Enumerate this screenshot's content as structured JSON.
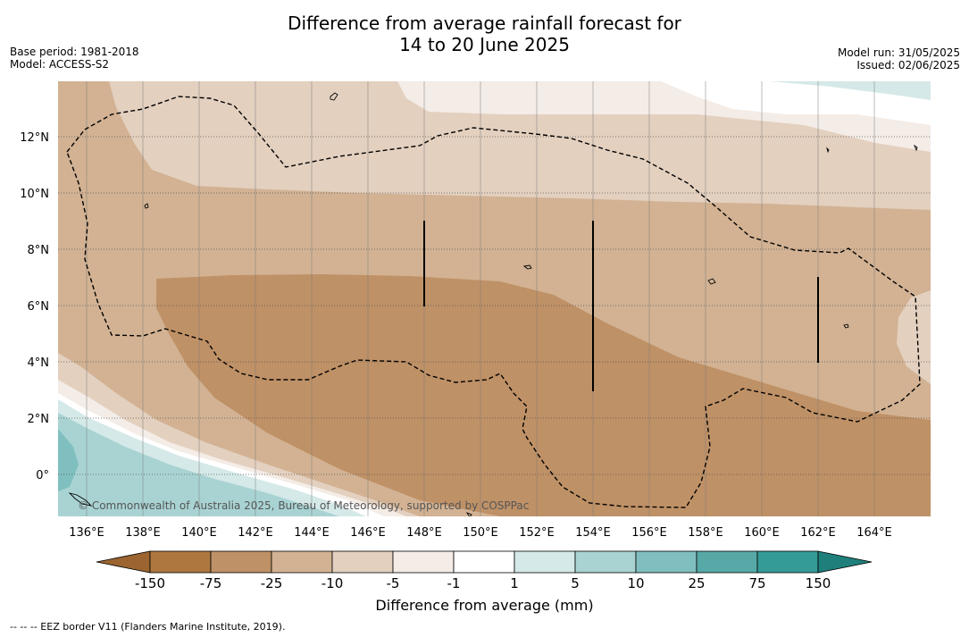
{
  "header": {
    "title_line1": "Difference from average rainfall forecast for",
    "title_line2": "14 to 20 June 2025",
    "base_period": "Base period: 1981-2018",
    "model": "Model: ACCESS-S2",
    "model_run": "Model run: 31/05/2025",
    "issued": "Issued: 02/06/2025"
  },
  "map": {
    "lat_labels": [
      "12°N",
      "10°N",
      "8°N",
      "6°N",
      "4°N",
      "2°N",
      "0°"
    ],
    "lon_labels": [
      "136°E",
      "138°E",
      "140°E",
      "142°E",
      "144°E",
      "146°E",
      "148°E",
      "150°E",
      "152°E",
      "154°E",
      "156°E",
      "158°E",
      "160°E",
      "162°E",
      "164°E"
    ],
    "copyright": "© Commonwealth of Australia 2025, Bureau of Meteorology, supported by COSPPac"
  },
  "legend": {
    "title": "Difference from average (mm)",
    "tick_labels": [
      "-150",
      "-75",
      "-25",
      "-10",
      "-5",
      "-1",
      "1",
      "5",
      "10",
      "25",
      "75",
      "150"
    ],
    "colors": [
      "#9b6430",
      "#ad773f",
      "#bf9166",
      "#d2b293",
      "#e3d0bf",
      "#f4ece6",
      "#ffffff",
      "#d5e9e8",
      "#a9d3d3",
      "#80bfbf",
      "#57a9a7",
      "#359b97",
      "#1f7f7b"
    ]
  },
  "footnote": "--  --  -- EEZ border V11 (Flanders Marine Institute, 2019)."
}
